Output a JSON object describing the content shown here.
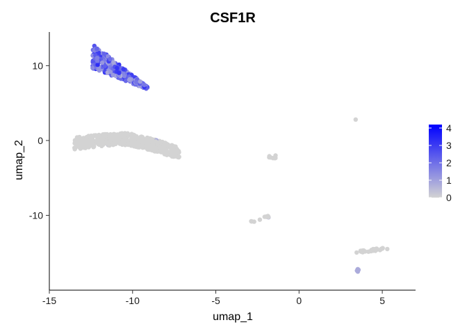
{
  "chart_data": {
    "type": "scatter",
    "title": "CSF1R",
    "xlabel": "umap_1",
    "ylabel": "umap_2",
    "xlim": [
      -15,
      7
    ],
    "ylim": [
      -20,
      14.5
    ],
    "xticks": [
      -15,
      -10,
      -5,
      0,
      5
    ],
    "yticks": [
      -10,
      0,
      10
    ],
    "grid": false,
    "legend": {
      "position": "right",
      "type": "colorbar",
      "range": [
        0,
        4.2
      ],
      "ticks": [
        0,
        1,
        2,
        3,
        4
      ],
      "low_color": "#d3d3d3",
      "high_color": "#0000ff"
    },
    "clusters": [
      {
        "label": "",
        "center": [
          -11.0,
          10.0
        ],
        "expression": 2.0,
        "n": 380
      },
      {
        "label": "",
        "center": [
          -10.3,
          0.0
        ],
        "expression": 0.0,
        "n": 520
      },
      {
        "label": "",
        "center": [
          -1.6,
          -2.2
        ],
        "expression": 0.0,
        "n": 8
      },
      {
        "label": "",
        "center": [
          -2.6,
          -10.5
        ],
        "expression": 0.1,
        "n": 10
      },
      {
        "label": "",
        "center": [
          4.2,
          -14.7
        ],
        "expression": 0.0,
        "n": 30
      },
      {
        "label": "",
        "center": [
          3.5,
          -17.0
        ],
        "expression": 0.4,
        "n": 5
      },
      {
        "label": "",
        "center": [
          3.4,
          2.8
        ],
        "expression": 0.0,
        "n": 1
      }
    ]
  }
}
